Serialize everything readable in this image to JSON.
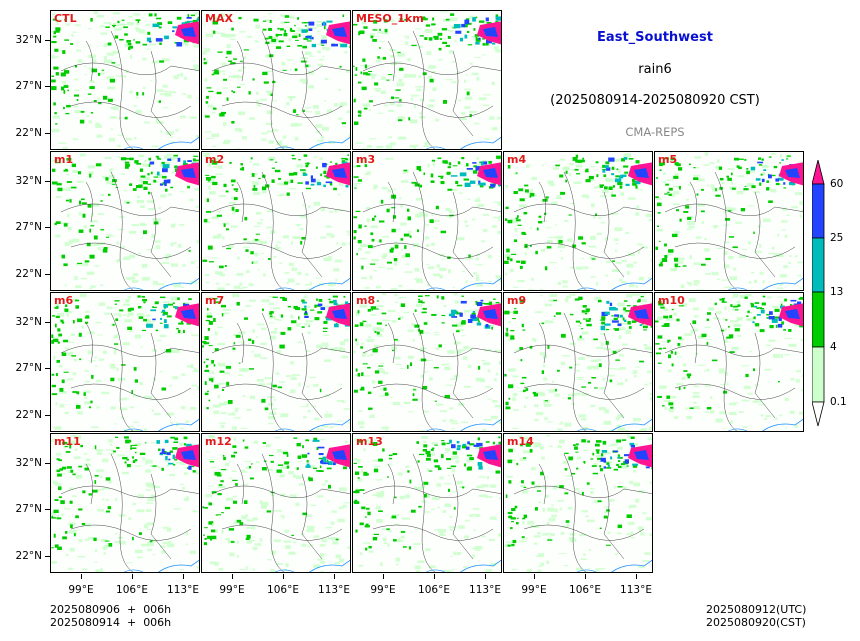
{
  "header": {
    "region": "East_Southwest",
    "variable": "rain6",
    "period": "(2025080914-2025080920 CST)",
    "system": "CMA-REPS"
  },
  "panels": [
    "CTL",
    "MAX",
    "MESO_1km",
    "m1",
    "m2",
    "m3",
    "m4",
    "m5",
    "m6",
    "m7",
    "m8",
    "m9",
    "m10",
    "m11",
    "m12",
    "m13",
    "m14"
  ],
  "axes": {
    "lat_labels": [
      "32°N",
      "27°N",
      "22°N"
    ],
    "lon_labels": [
      "99°E",
      "106°E",
      "113°E"
    ]
  },
  "colorbar": {
    "levels": [
      "0.1",
      "4",
      "13",
      "25",
      "60"
    ],
    "colors": [
      "#ffffff",
      "#ccffcc",
      "#00cc00",
      "#00bbbb",
      "#2244ff",
      "#ff1493"
    ]
  },
  "footer": {
    "init_line": "2025080906  +  006h",
    "init_line_cst": "2025080914  +  006h",
    "valid_utc": "2025080912(UTC)",
    "valid_cst": "2025080920(CST)"
  },
  "colors": {
    "region_title": "#0000cc",
    "system_title": "#888888",
    "panel_label": "#e31a1c"
  }
}
